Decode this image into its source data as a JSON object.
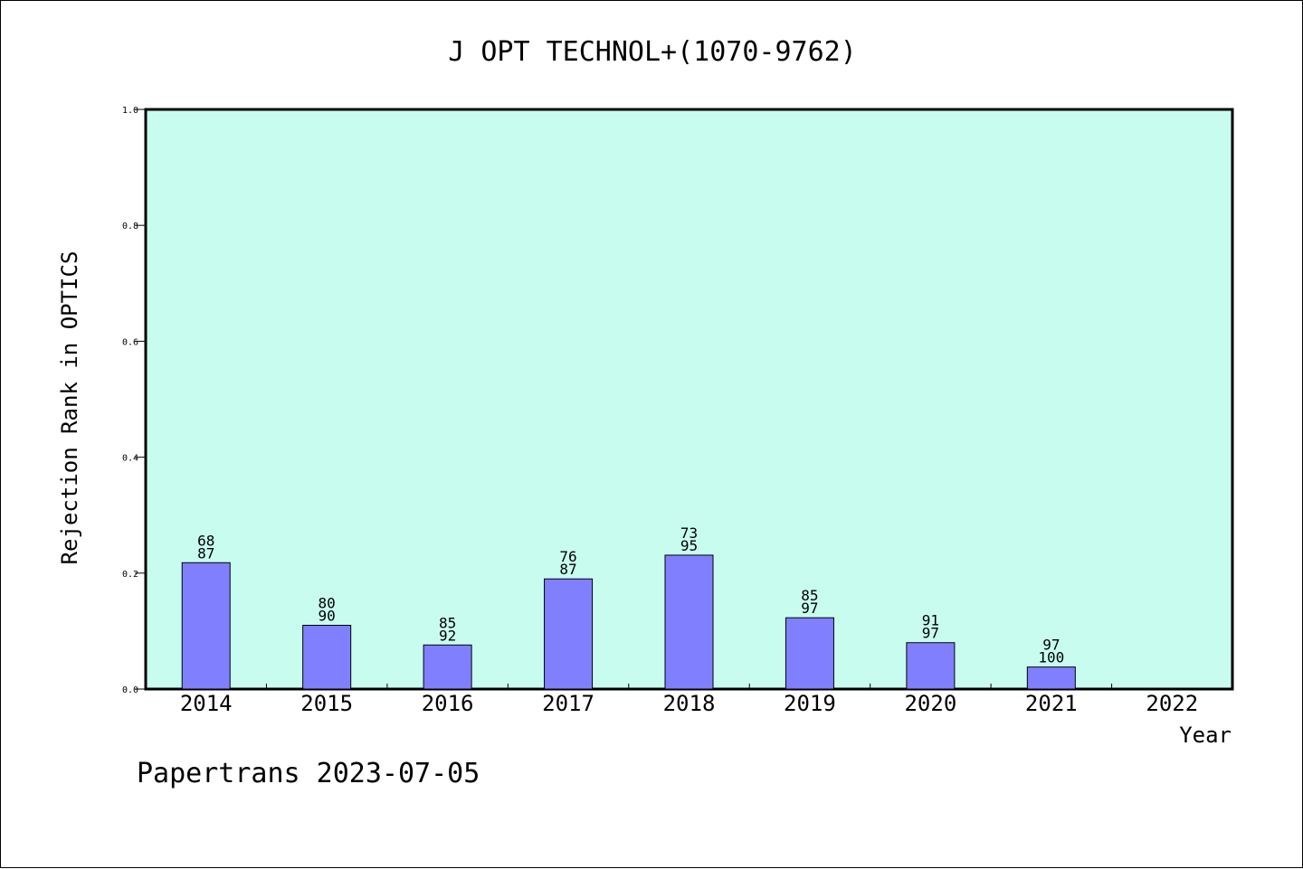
{
  "chart_data": {
    "type": "bar",
    "title": "J OPT TECHNOL+(1070-9762)",
    "xlabel": "Year",
    "ylabel": "Rejection Rank in OPTICS",
    "ylim": [
      0,
      1.0
    ],
    "yticks": [
      "0.0",
      "0.2",
      "0.4",
      "0.6",
      "0.8",
      "1.0"
    ],
    "categories": [
      "2014",
      "2015",
      "2016",
      "2017",
      "2018",
      "2019",
      "2020",
      "2021",
      "2022"
    ],
    "values": [
      0.218,
      0.11,
      0.076,
      0.19,
      0.231,
      0.123,
      0.08,
      0.038,
      null
    ],
    "label_top": [
      "68",
      "80",
      "85",
      "76",
      "73",
      "85",
      "91",
      "97",
      ""
    ],
    "label_bottom": [
      "87",
      "90",
      "92",
      "87",
      "95",
      "97",
      "97",
      "100",
      ""
    ],
    "grid": false,
    "colors": {
      "plot_background": "#c8fcee",
      "bar_fill": "#8080ff",
      "bar_stroke": "#000000"
    }
  },
  "footer": "Papertrans 2023-07-05"
}
